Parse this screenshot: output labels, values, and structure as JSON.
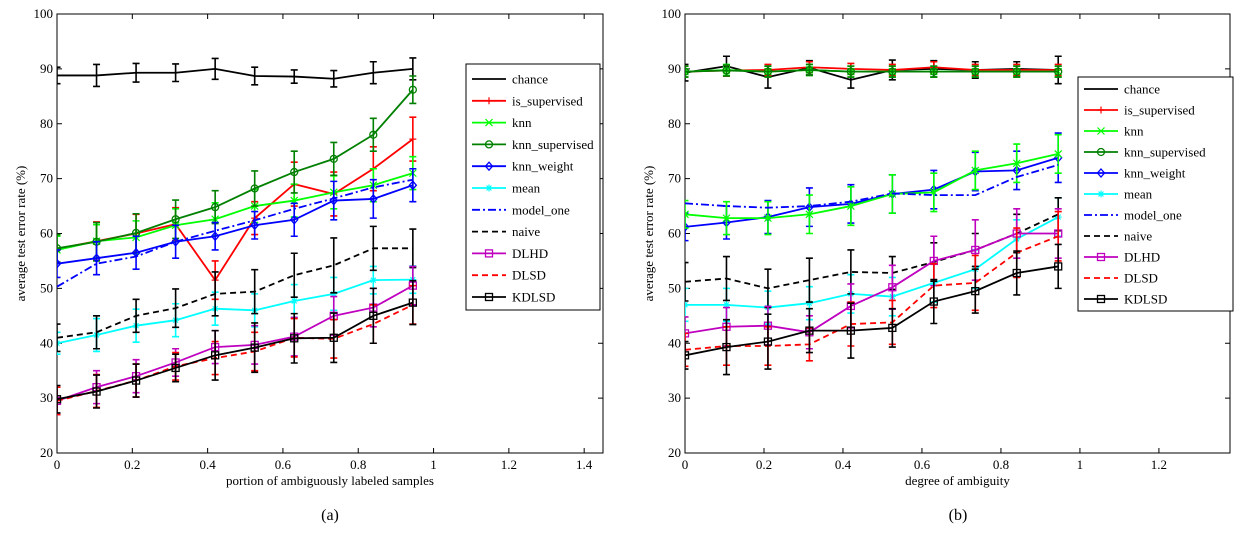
{
  "chart_data": [
    {
      "type": "line",
      "panel_label": "(a)",
      "xlabel": "portion of ambiguously labeled samples",
      "ylabel": "average test error rate (%)",
      "xlim": [
        0,
        1.45
      ],
      "ylim": [
        20,
        100
      ],
      "xticks": [
        0,
        0.2,
        0.4,
        0.6,
        0.8,
        1,
        1.2,
        1.4
      ],
      "xtick_labels": [
        "0",
        "0.2",
        "0.4",
        "0.6",
        "0.8",
        "1",
        "1.2",
        "1.4"
      ],
      "yticks": [
        20,
        30,
        40,
        50,
        60,
        70,
        80,
        90,
        100
      ],
      "ytick_labels": [
        "20",
        "30",
        "40",
        "50",
        "60",
        "70",
        "80",
        "90",
        "100"
      ],
      "grid": false,
      "legend_position": "top-right",
      "x": [
        0,
        0.105,
        0.21,
        0.315,
        0.42,
        0.525,
        0.63,
        0.735,
        0.84,
        0.945
      ],
      "series": [
        {
          "name": "chance",
          "color": "#000000",
          "dash": "solid",
          "marker": "none",
          "values": [
            88.8,
            88.8,
            89.3,
            89.3,
            90.0,
            88.7,
            88.6,
            88.2,
            89.3,
            90.0
          ],
          "errors": [
            1.5,
            2.0,
            1.7,
            1.6,
            1.9,
            1.6,
            1.2,
            1.5,
            2.0,
            2.0
          ]
        },
        {
          "name": "is_supervised",
          "color": "#ff0000",
          "dash": "solid",
          "marker": "plus",
          "values": [
            57.2,
            58.6,
            60.0,
            61.7,
            51.5,
            62.8,
            69.0,
            67.2,
            71.8,
            77.2
          ],
          "errors": [
            2.5,
            3.5,
            3.5,
            3.0,
            3.5,
            3.0,
            4.0,
            4.0,
            4.0,
            4.0
          ]
        },
        {
          "name": "knn",
          "color": "#00ff00",
          "dash": "solid",
          "marker": "x",
          "values": [
            57.0,
            58.6,
            59.3,
            61.5,
            62.6,
            65.0,
            66.0,
            67.5,
            68.8,
            71.0
          ],
          "errors": [
            2.5,
            3.0,
            3.0,
            3.0,
            3.0,
            3.0,
            3.0,
            3.0,
            3.0,
            3.0
          ]
        },
        {
          "name": "knn_supervised",
          "color": "#008000",
          "dash": "solid",
          "marker": "circle",
          "values": [
            57.3,
            58.5,
            60.1,
            62.6,
            64.8,
            68.2,
            71.2,
            73.6,
            78.0,
            86.2
          ],
          "errors": [
            2.5,
            3.5,
            3.5,
            3.5,
            3.0,
            3.2,
            3.8,
            3.0,
            3.0,
            2.5
          ]
        },
        {
          "name": "knn_weight",
          "color": "#0000ff",
          "dash": "solid",
          "marker": "diamond",
          "values": [
            54.5,
            55.5,
            56.5,
            58.5,
            59.5,
            61.5,
            62.5,
            66.0,
            66.3,
            68.8
          ],
          "errors": [
            2.5,
            3.0,
            3.0,
            3.0,
            2.5,
            2.5,
            3.0,
            3.5,
            3.5,
            3.0
          ]
        },
        {
          "name": "mean",
          "color": "#00ffff",
          "dash": "solid",
          "marker": "star",
          "values": [
            40.0,
            41.5,
            43.2,
            44.2,
            46.3,
            46.0,
            47.7,
            49.0,
            51.5,
            51.6
          ],
          "errors": [
            2.0,
            3.0,
            3.0,
            3.0,
            3.0,
            3.0,
            3.0,
            3.0,
            2.5,
            2.5
          ]
        },
        {
          "name": "model_one",
          "color": "#0000ff",
          "dash": "dashdot",
          "marker": "none",
          "values": [
            50.3,
            54.5,
            55.8,
            58.5,
            60.5,
            62.4,
            64.5,
            66.4,
            68.4,
            69.8
          ],
          "errors": [
            0,
            0,
            0,
            0,
            0,
            0,
            0,
            0,
            0,
            0
          ]
        },
        {
          "name": "naive",
          "color": "#000000",
          "dash": "dashed",
          "marker": "none",
          "values": [
            41.0,
            42.0,
            45.0,
            46.4,
            49.0,
            49.4,
            52.4,
            54.2,
            57.3,
            57.3
          ],
          "errors": [
            2.5,
            3.0,
            3.0,
            3.5,
            4.0,
            4.0,
            4.0,
            5.0,
            4.0,
            3.5
          ]
        },
        {
          "name": "DLHD",
          "color": "#bf00bf",
          "dash": "solid",
          "marker": "square",
          "values": [
            29.5,
            32.0,
            34.0,
            36.5,
            39.3,
            39.7,
            41.2,
            45.0,
            46.5,
            50.5
          ],
          "errors": [
            2.5,
            3.0,
            3.0,
            2.5,
            3.0,
            3.5,
            3.5,
            3.5,
            3.5,
            3.5
          ]
        },
        {
          "name": "DLSD",
          "color": "#ff0000",
          "dash": "dashed",
          "marker": "none",
          "values": [
            29.5,
            31.3,
            33.2,
            35.8,
            37.3,
            38.5,
            41.0,
            40.8,
            43.5,
            47.0
          ],
          "errors": [
            2.5,
            3.0,
            3.0,
            2.5,
            3.0,
            3.5,
            3.5,
            3.5,
            3.5,
            3.5
          ]
        },
        {
          "name": "KDLSD",
          "color": "#000000",
          "dash": "solid",
          "marker": "square",
          "values": [
            29.8,
            31.2,
            33.2,
            35.5,
            37.8,
            39.2,
            40.9,
            41.0,
            45.0,
            47.4
          ],
          "errors": [
            2.5,
            3.0,
            3.0,
            2.5,
            4.5,
            4.5,
            4.5,
            4.5,
            5.0,
            4.0
          ]
        }
      ]
    },
    {
      "type": "line",
      "panel_label": "(b)",
      "xlabel": "degree of ambiguity",
      "ylabel": "average test error rate (%)",
      "xlim": [
        0,
        1.38
      ],
      "ylim": [
        20,
        100
      ],
      "xticks": [
        0,
        0.2,
        0.4,
        0.6,
        0.8,
        1,
        1.2
      ],
      "xtick_labels": [
        "0",
        "0.2",
        "0.4",
        "0.6",
        "0.8",
        "1",
        "1.2"
      ],
      "yticks": [
        20,
        30,
        40,
        50,
        60,
        70,
        80,
        90,
        100
      ],
      "ytick_labels": [
        "20",
        "30",
        "40",
        "50",
        "60",
        "70",
        "80",
        "90",
        "100"
      ],
      "grid": false,
      "legend_position": "top-right",
      "x": [
        0,
        0.105,
        0.21,
        0.315,
        0.42,
        0.525,
        0.63,
        0.735,
        0.84,
        0.945
      ],
      "series": [
        {
          "name": "chance",
          "color": "#000000",
          "dash": "solid",
          "marker": "none",
          "values": [
            89.3,
            90.5,
            88.5,
            90.2,
            88.0,
            89.8,
            90.0,
            89.8,
            90.0,
            89.8
          ],
          "errors": [
            1.5,
            1.8,
            2.0,
            1.3,
            1.5,
            1.8,
            1.5,
            1.5,
            1.3,
            2.5
          ]
        },
        {
          "name": "is_supervised",
          "color": "#ff0000",
          "dash": "solid",
          "marker": "plus",
          "values": [
            89.5,
            89.7,
            89.8,
            90.3,
            90.0,
            89.8,
            90.3,
            89.8,
            89.8,
            89.8
          ],
          "errors": [
            1.0,
            1.0,
            1.0,
            1.0,
            1.0,
            1.0,
            1.0,
            1.0,
            1.0,
            1.0
          ]
        },
        {
          "name": "knn",
          "color": "#00ff00",
          "dash": "solid",
          "marker": "x",
          "values": [
            89.5,
            89.8,
            89.5,
            89.8,
            89.5,
            89.5,
            89.5,
            89.5,
            89.5,
            89.5
          ],
          "errors": [
            1.0,
            1.0,
            1.0,
            1.0,
            1.0,
            1.0,
            1.0,
            1.0,
            1.0,
            1.0
          ]
        },
        {
          "name": "knn_supervised",
          "color": "#008000",
          "dash": "solid",
          "marker": "circle",
          "values": [
            89.5,
            89.7,
            89.5,
            89.8,
            89.5,
            89.5,
            89.5,
            89.5,
            89.5,
            89.5
          ],
          "errors": [
            1.0,
            1.0,
            1.0,
            1.0,
            1.0,
            1.0,
            1.0,
            1.0,
            1.0,
            1.0
          ]
        },
        {
          "name": "knn_weight",
          "color": "#0000ff",
          "dash": "solid",
          "marker": "diamond",
          "values": [
            61.2,
            62.0,
            63.0,
            64.8,
            65.4,
            67.2,
            68.0,
            71.3,
            71.5,
            73.8
          ],
          "errors": [
            2.5,
            3.0,
            3.0,
            3.5,
            3.5,
            3.5,
            3.5,
            3.5,
            3.5,
            4.5
          ]
        },
        {
          "name": "knn",
          "color": "#00ff00",
          "dash": "solid",
          "marker": "x",
          "hidden_in_legend": true,
          "values": [
            63.5,
            62.8,
            62.8,
            63.5,
            65.0,
            67.2,
            67.5,
            71.5,
            72.8,
            74.5
          ],
          "errors": [
            2.5,
            3.0,
            3.0,
            3.5,
            3.5,
            3.5,
            3.5,
            3.5,
            3.5,
            3.5
          ]
        },
        {
          "name": "mean",
          "color": "#00ffff",
          "dash": "solid",
          "marker": "star",
          "values": [
            47.0,
            47.0,
            46.5,
            47.3,
            49.0,
            48.5,
            51.0,
            53.5,
            59.0,
            63.0
          ],
          "errors": [
            3.0,
            3.0,
            3.0,
            3.0,
            3.5,
            3.5,
            3.5,
            3.5,
            3.5,
            3.5
          ]
        },
        {
          "name": "model_one",
          "color": "#0000ff",
          "dash": "dashdot",
          "marker": "none",
          "values": [
            65.5,
            65.0,
            64.7,
            65.0,
            65.8,
            67.3,
            67.0,
            67.0,
            70.3,
            72.5
          ],
          "errors": [
            0,
            0,
            0,
            0,
            0,
            0,
            0,
            0,
            0,
            0
          ]
        },
        {
          "name": "naive",
          "color": "#000000",
          "dash": "dashed",
          "marker": "none",
          "values": [
            51.2,
            51.8,
            50.0,
            51.5,
            53.0,
            52.8,
            54.8,
            57.0,
            60.0,
            63.5
          ],
          "errors": [
            3.5,
            4.0,
            3.5,
            4.0,
            4.0,
            3.0,
            3.5,
            3.0,
            3.5,
            3.0
          ]
        },
        {
          "name": "DLHD",
          "color": "#bf00bf",
          "dash": "solid",
          "marker": "square",
          "values": [
            41.8,
            43.0,
            43.2,
            42.0,
            46.8,
            50.2,
            55.0,
            57.0,
            60.0,
            60.0
          ],
          "errors": [
            3.0,
            3.5,
            3.5,
            3.0,
            4.0,
            4.0,
            4.5,
            5.5,
            4.5,
            4.5
          ]
        },
        {
          "name": "DLSD",
          "color": "#ff0000",
          "dash": "dashed",
          "marker": "none",
          "values": [
            38.8,
            39.5,
            39.5,
            39.8,
            43.5,
            43.8,
            50.5,
            51.0,
            56.5,
            59.5
          ],
          "errors": [
            3.0,
            3.5,
            3.5,
            3.0,
            4.0,
            4.0,
            4.0,
            5.0,
            4.5,
            4.5
          ]
        },
        {
          "name": "KDLSD",
          "color": "#000000",
          "dash": "solid",
          "marker": "square",
          "values": [
            37.8,
            39.3,
            40.3,
            42.3,
            42.3,
            42.8,
            47.6,
            49.5,
            52.8,
            54.0
          ],
          "errors": [
            2.5,
            5.0,
            5.0,
            4.0,
            5.0,
            3.5,
            4.0,
            4.0,
            4.0,
            4.0
          ]
        }
      ]
    }
  ]
}
